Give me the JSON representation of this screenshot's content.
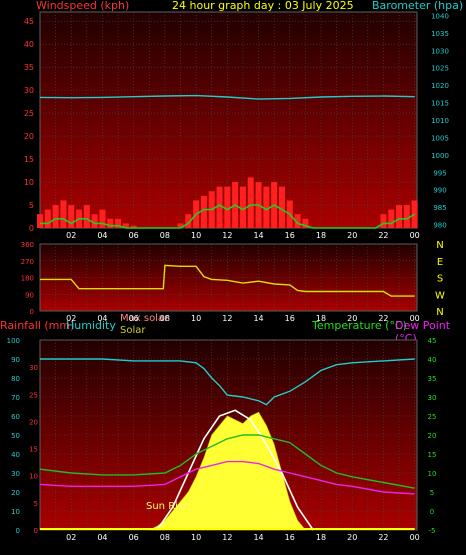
{
  "header": {
    "left_title": "Windspeed (kph)",
    "center_title": "24 hour graph day : 03 July 2025",
    "right_title": "Barometer (hpa)"
  },
  "panel3_labels": {
    "rainfall": "Rainfall (mm)",
    "humidity": "Humidity",
    "max_solar": "Max solar",
    "solar": "Solar",
    "temperature": "Temperature (°C)",
    "dew_point": "Dew Point (°C)",
    "sun_rise": "Sun Rise"
  },
  "colors": {
    "wind": "#ff2020",
    "gust": "#22cc22",
    "barometer": "#22cccc",
    "direction": "#dddd00",
    "humidity": "#22cccc",
    "temperature": "#22bb22",
    "dew_point": "#ee22ee",
    "solar": "#ffff33",
    "max_solar": "#ffffff",
    "rain": "#ffff00"
  },
  "chart_data": [
    {
      "type": "line",
      "name": "wind-barometer",
      "x_ticks": [
        "02",
        "04",
        "06",
        "08",
        "10",
        "12",
        "14",
        "16",
        "18",
        "20",
        "22",
        "00"
      ],
      "left_ticks": [
        0,
        5,
        10,
        15,
        20,
        25,
        30,
        35,
        40,
        45
      ],
      "right_ticks": [
        980,
        985,
        990,
        995,
        1000,
        1005,
        1010,
        1015,
        1020,
        1025,
        1030,
        1035,
        1040
      ],
      "left_range": [
        0,
        47
      ],
      "right_range": [
        979,
        1041
      ],
      "grid": true,
      "series": [
        {
          "role": "windspeed",
          "x": [
            0,
            0.5,
            1,
            1.5,
            2,
            2.5,
            3,
            3.5,
            4,
            4.5,
            5,
            5.5,
            6,
            6.5,
            7,
            7.5,
            8,
            8.5,
            9,
            9.5,
            10,
            10.5,
            11,
            11.5,
            12,
            12.5,
            13,
            13.5,
            14,
            14.5,
            15,
            15.5,
            16,
            16.5,
            17,
            17.5,
            18,
            18.5,
            19,
            19.5,
            20,
            20.5,
            21,
            21.5,
            22,
            22.5,
            23,
            23.5,
            24
          ],
          "values": [
            3,
            4,
            5,
            6,
            5,
            4,
            5,
            3,
            4,
            2,
            2,
            1,
            0.5,
            0,
            0,
            0,
            0,
            0,
            1,
            3,
            6,
            7,
            8,
            9,
            9,
            10,
            9,
            11,
            10,
            9,
            10,
            9,
            6,
            3,
            2,
            0,
            0,
            0,
            0,
            0,
            0,
            0,
            0,
            0,
            3,
            4,
            5,
            5,
            6
          ]
        },
        {
          "role": "gust",
          "x": [
            0,
            0.5,
            1,
            1.5,
            2,
            2.5,
            3,
            3.5,
            4,
            4.5,
            5,
            5.5,
            6,
            6.5,
            7,
            7.5,
            8,
            8.5,
            9,
            9.5,
            10,
            10.5,
            11,
            11.5,
            12,
            12.5,
            13,
            13.5,
            14,
            14.5,
            15,
            15.5,
            16,
            16.5,
            17,
            17.5,
            18,
            18.5,
            19,
            19.5,
            20,
            20.5,
            21,
            21.5,
            22,
            22.5,
            23,
            23.5,
            24
          ],
          "values": [
            1,
            1,
            2,
            2,
            1,
            2,
            2,
            1,
            1,
            0.5,
            0.5,
            0,
            0,
            0,
            0,
            0,
            0,
            0,
            0,
            1,
            3,
            4,
            4,
            5,
            4,
            5,
            4,
            5,
            5,
            4,
            5,
            4,
            3,
            1,
            0.5,
            0,
            0,
            0,
            0,
            0,
            0,
            0,
            0,
            0,
            1,
            1,
            2,
            2,
            3
          ]
        },
        {
          "role": "barometer",
          "x": [
            0,
            2,
            4,
            6,
            8,
            10,
            12,
            14,
            16,
            18,
            20,
            22,
            24
          ],
          "values": [
            1016.5,
            1016.4,
            1016.5,
            1016.7,
            1016.9,
            1017.0,
            1016.6,
            1016.0,
            1016.2,
            1016.6,
            1016.8,
            1016.9,
            1016.7
          ]
        }
      ]
    },
    {
      "type": "line",
      "name": "wind-direction",
      "x_ticks": [
        "02",
        "04",
        "06",
        "08",
        "10",
        "12",
        "14",
        "16",
        "18",
        "20",
        "22",
        "00"
      ],
      "left_ticks": [
        0,
        90,
        180,
        270,
        360
      ],
      "right_ticks": [
        "N",
        "W",
        "S",
        "E",
        "N"
      ],
      "left_range": [
        0,
        360
      ],
      "grid": true,
      "series": [
        {
          "role": "direction",
          "x": [
            0,
            1,
            2,
            2.5,
            4,
            6,
            7.9,
            8,
            9,
            10,
            10.5,
            11,
            12,
            13,
            14,
            15,
            16,
            16.5,
            17,
            18,
            20,
            22,
            22.5,
            24
          ],
          "values": [
            170,
            170,
            170,
            120,
            120,
            120,
            120,
            245,
            240,
            240,
            185,
            170,
            165,
            150,
            160,
            145,
            140,
            110,
            105,
            105,
            105,
            105,
            80,
            80
          ]
        }
      ]
    },
    {
      "type": "line",
      "name": "temperature-humidity-solar",
      "x_ticks": [
        "02",
        "04",
        "06",
        "08",
        "10",
        "12",
        "14",
        "16",
        "18",
        "20",
        "22",
        "00"
      ],
      "humidity_ticks": [
        0,
        10,
        20,
        30,
        40,
        50,
        60,
        70,
        80,
        90,
        100
      ],
      "rain_ticks": [
        0,
        5,
        10,
        15,
        20,
        25,
        30
      ],
      "temp_ticks": [
        -5,
        0,
        5,
        10,
        15,
        20,
        25,
        30,
        35,
        40,
        45
      ],
      "humidity_range": [
        0,
        100
      ],
      "rain_range": [
        0,
        35
      ],
      "temp_range": [
        -5,
        45
      ],
      "grid": true,
      "series": [
        {
          "role": "humidity",
          "x": [
            0,
            2,
            4,
            6,
            8,
            9,
            10,
            10.5,
            11,
            11.5,
            12,
            13,
            14,
            14.5,
            15,
            16,
            17,
            18,
            19,
            20,
            22,
            24
          ],
          "values": [
            90,
            90,
            90,
            89,
            89,
            89,
            88,
            85,
            80,
            76,
            71,
            70,
            68,
            66,
            70,
            73,
            78,
            84,
            87,
            88,
            89,
            90
          ]
        },
        {
          "role": "temperature",
          "x": [
            0,
            2,
            4,
            6,
            8,
            9,
            10,
            11,
            12,
            13,
            14,
            15,
            16,
            17,
            18,
            19,
            20,
            22,
            24
          ],
          "values": [
            11,
            10,
            9.5,
            9.5,
            10,
            12,
            15,
            17,
            19,
            20,
            20,
            19,
            18,
            15,
            12,
            10,
            9,
            7.5,
            6
          ]
        },
        {
          "role": "dew_point",
          "x": [
            0,
            2,
            4,
            6,
            8,
            9,
            10,
            11,
            12,
            13,
            14,
            15,
            16,
            17,
            18,
            19,
            20,
            22,
            24
          ],
          "values": [
            7,
            6.5,
            6.5,
            6.5,
            7,
            9,
            11,
            12,
            13,
            13,
            12.5,
            11,
            10,
            9,
            8,
            7,
            6.5,
            5,
            4.5
          ]
        },
        {
          "role": "solar",
          "x": [
            7,
            7.5,
            8,
            8.5,
            9,
            9.5,
            10,
            10.5,
            11,
            11.5,
            12,
            12.5,
            13,
            13.5,
            14,
            14.5,
            15,
            15.5,
            16,
            16.5,
            17
          ],
          "values": [
            0,
            2,
            5,
            10,
            15,
            20,
            28,
            38,
            50,
            55,
            60,
            58,
            56,
            60,
            62,
            55,
            45,
            30,
            15,
            5,
            0
          ]
        },
        {
          "role": "max_solar",
          "x": [
            7.5,
            8.5,
            9.5,
            10.5,
            11.5,
            12.5,
            13.5,
            14.5,
            15.5,
            16.5,
            17.5
          ],
          "values": [
            0,
            12,
            30,
            48,
            60,
            63,
            58,
            45,
            30,
            12,
            0
          ]
        },
        {
          "role": "rain",
          "x": [
            0,
            24
          ],
          "values": [
            0,
            0
          ]
        }
      ]
    }
  ]
}
